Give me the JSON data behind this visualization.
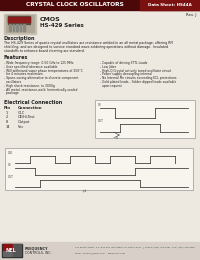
{
  "title": "CRYSTAL CLOCK OSCILLATORS",
  "data_sheet_label": "Data Sheet: HS44A",
  "rev": "Rev. J",
  "product_type": "CMOS",
  "series": "HS-429 Series",
  "description_title": "Description",
  "description_body": "The HS-429 Series of quartz crystal oscillators are resistance welded in an all metal package, offering RFI shielding, and are designed to survive standard wave-soldering operations without damage.  Insulated standoffs to enhance board cleaning are standard.",
  "features_title": "Features",
  "features_left": [
    "- Wide frequency range: 0.50 GHz to 125 MHz",
    "- User specified tolerance available",
    "- Will withstand vapor phase temperatures of 250°C",
    "  for 4 minutes maximum",
    "- Space-saving alternative to discrete component",
    "  oscillators",
    "- High shock resistance, to 3000g",
    "- All metal, resistance-weld, hermetically-sealed",
    "  package"
  ],
  "features_right": [
    "- Capable of driving 3TTL Loads",
    "- Low Jitter",
    "- High-Q Crystal actively tuned oscillator circuit",
    "- Power supply decoupling internal",
    "- No Internal Pin circuits exceeding ECL protections",
    "- Gold plated leads - Solder dipped leads available",
    "  upon request"
  ],
  "electrical_title": "Electrical Connection",
  "pins": [
    [
      "1",
      "GLC"
    ],
    [
      "2",
      "OE/Hi-Test"
    ],
    [
      "8",
      "Output"
    ],
    [
      "14",
      "Vcc"
    ]
  ],
  "header_bg": "#4a0808",
  "header_text": "#ffffff",
  "ds_label_bg": "#7a1010",
  "body_bg": "#ede8e0",
  "footer_bg": "#d8d0c8",
  "line_color": "#444444",
  "text_color": "#222222",
  "nel_dark": "#2a2a2a",
  "nel_red": "#8b1010"
}
